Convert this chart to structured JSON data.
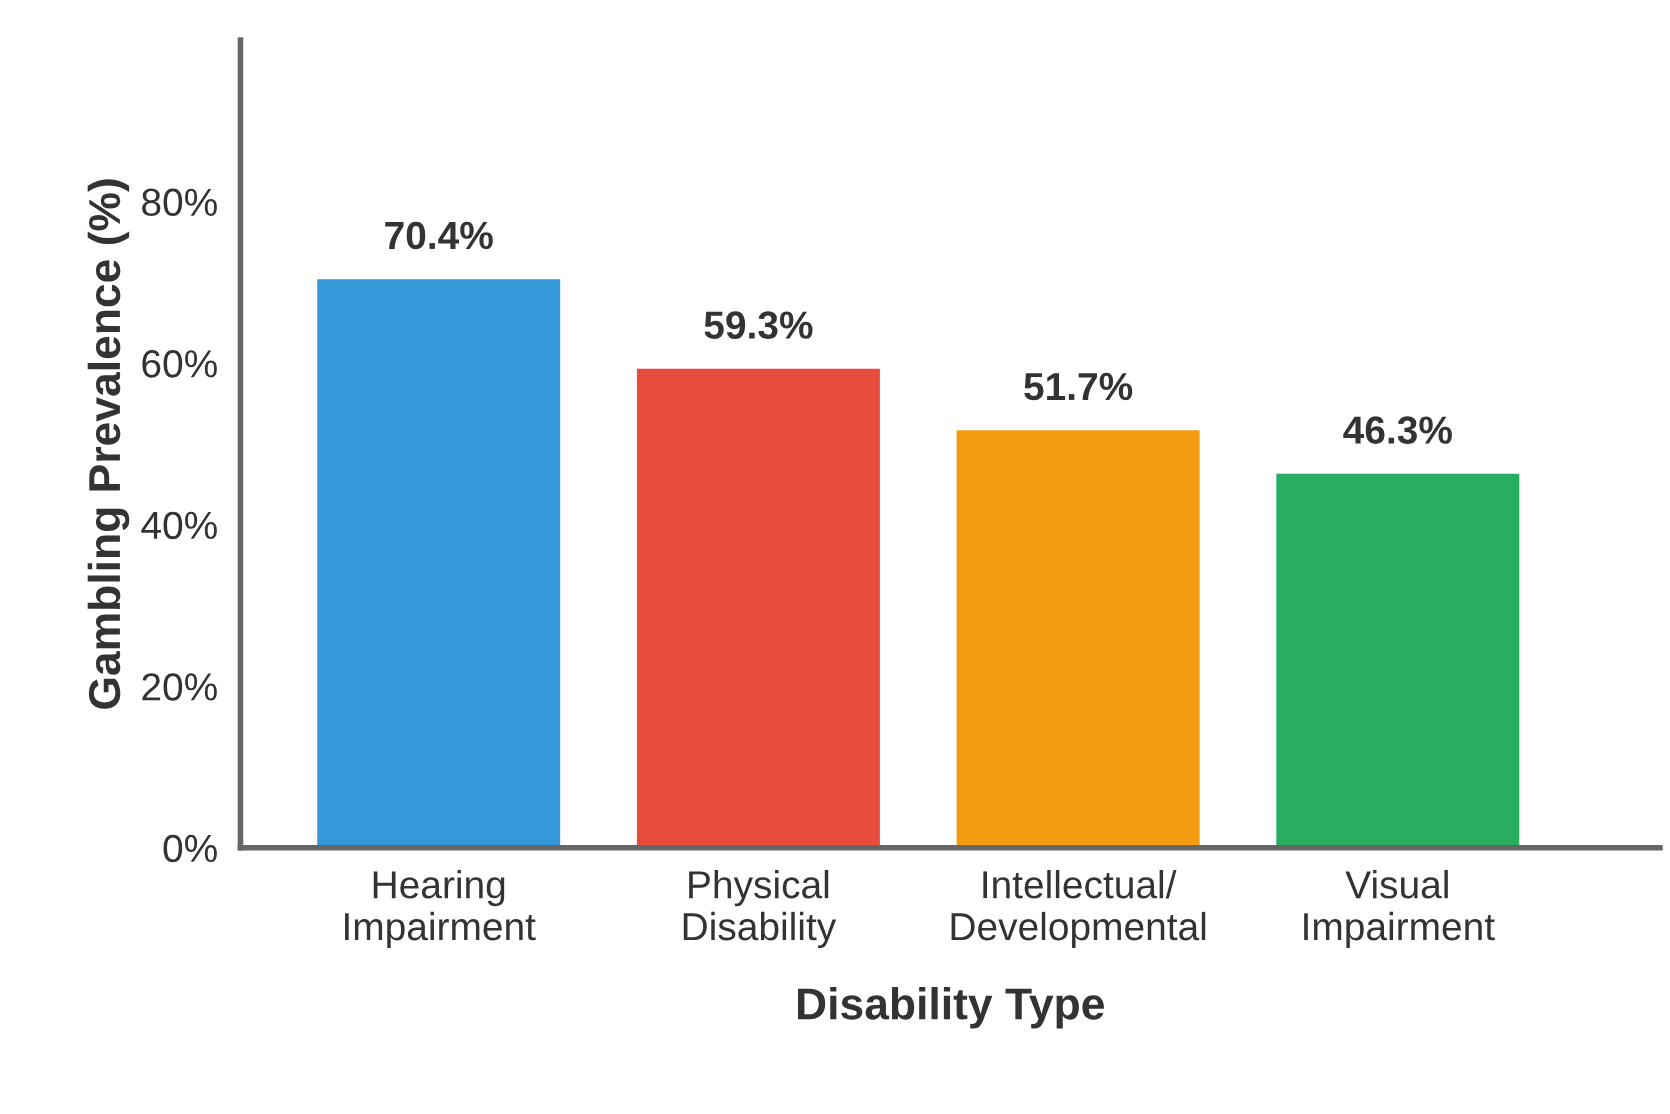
{
  "chart_data": {
    "type": "bar",
    "categories": [
      "Hearing\nImpairment",
      "Physical\nDisability",
      "Intellectual/\nDevelopmental",
      "Visual\nImpairment"
    ],
    "values": [
      70.4,
      59.3,
      51.7,
      46.3
    ],
    "colors": [
      "#3498db",
      "#e74c3c",
      "#f39c12",
      "#27ae60"
    ],
    "xlabel": "Disability Type",
    "ylabel": "Gambling Prevalence (%)",
    "ylim": [
      0,
      100
    ],
    "yticks": [
      {
        "value": 0,
        "label": "0%"
      },
      {
        "value": 20,
        "label": "20%"
      },
      {
        "value": 40,
        "label": "40%"
      },
      {
        "value": 60,
        "label": "60%"
      },
      {
        "value": 80,
        "label": "80%"
      }
    ],
    "value_labels": [
      "70.4%",
      "59.3%",
      "51.7%",
      "46.3%"
    ],
    "grid": false,
    "legend": false
  }
}
